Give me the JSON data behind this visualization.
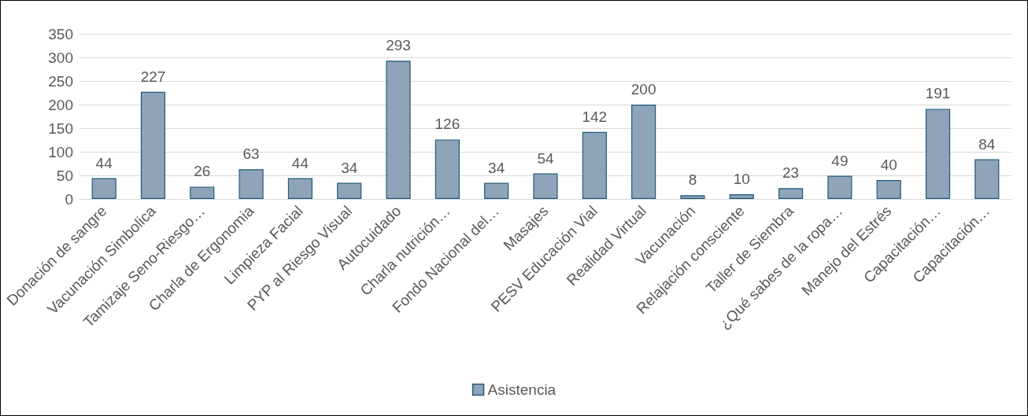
{
  "chart_data": {
    "type": "bar",
    "categories": [
      "Donación de sangre",
      "Vacunación Simbolica",
      "Tamizaje Seno-Riesgo…",
      "Charla de Ergonomia",
      "Limpieza Facial",
      "PYP al Riesgo Visual",
      "Autocuidado",
      "Charla nutrición…",
      "Fondo Nacional del…",
      "Masajes",
      "PESV Educación Vial",
      "Realidad Virtual",
      "Vacunación",
      "Relajación consciente",
      "Taller de Siembra",
      "¿Qué sabes de la ropa…",
      "Manejo del Estrés",
      "Capacitación…",
      "Capacitación…"
    ],
    "series": [
      {
        "name": "Asistencia",
        "color": "#8fa4b8",
        "values": [
          44,
          227,
          26,
          63,
          44,
          34,
          293,
          126,
          34,
          54,
          142,
          200,
          8,
          10,
          23,
          49,
          40,
          191,
          84
        ]
      }
    ],
    "ylim": [
      0,
      350
    ],
    "yticks": [
      0,
      50,
      100,
      150,
      200,
      250,
      300,
      350
    ],
    "grid": "y",
    "legend": "bottom",
    "data_labels": true
  }
}
